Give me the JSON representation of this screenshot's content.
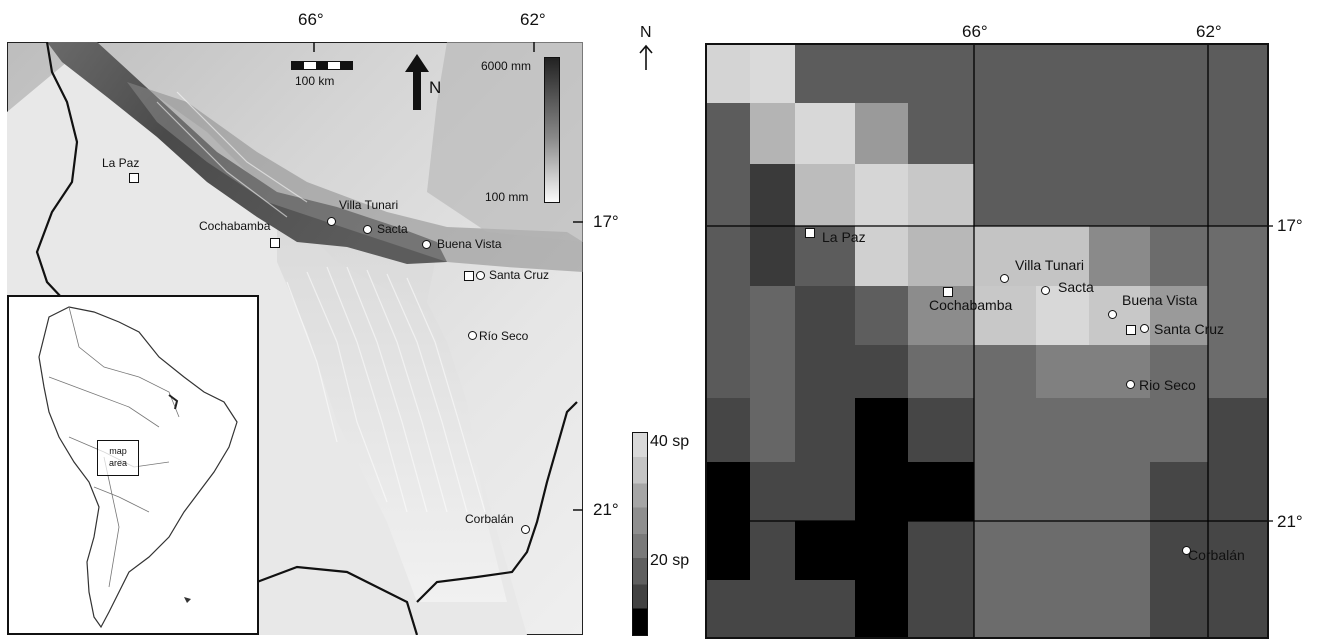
{
  "left_map": {
    "longitudes": [
      "66°",
      "62°"
    ],
    "latitudes": [
      "17°",
      "21°"
    ],
    "scale_bar": {
      "label": "100 km"
    },
    "north_arrow": {
      "label": "N"
    },
    "precip_legend": {
      "max": "6000 mm",
      "min": "100 mm"
    },
    "cities": [
      {
        "name": "La Paz",
        "type": "square"
      },
      {
        "name": "Cochabamba",
        "type": "square"
      },
      {
        "name": "Villa Tunari",
        "type": "circle"
      },
      {
        "name": "Sacta",
        "type": "circle"
      },
      {
        "name": "Buena Vista",
        "type": "circle"
      },
      {
        "name": "Santa Cruz",
        "type": "square+circle"
      },
      {
        "name": "Río Seco",
        "type": "circle"
      },
      {
        "name": "Corbalán",
        "type": "circle"
      }
    ],
    "inset": {
      "label_line1": "map",
      "label_line2": "area"
    }
  },
  "right_map": {
    "north_label": "N",
    "longitudes": [
      "66°",
      "62°"
    ],
    "latitudes": [
      "17°",
      "21°"
    ],
    "cities": [
      {
        "name": "La Paz",
        "type": "square"
      },
      {
        "name": "Villa Tunari",
        "type": "circle"
      },
      {
        "name": "Sacta",
        "type": "circle"
      },
      {
        "name": "Cochabamba",
        "type": "square"
      },
      {
        "name": "Buena Vista",
        "type": "circle"
      },
      {
        "name": "Santa Cruz",
        "type": "square+circle"
      },
      {
        "name": "Rio Seco",
        "type": "circle"
      },
      {
        "name": "Corbalán",
        "type": "circle"
      }
    ]
  },
  "species_legend": {
    "high": "40 sp",
    "mid": "20 sp"
  },
  "colors": {
    "highland_ridge": "#3a3a3a",
    "lowland": "#d8d8d8"
  }
}
